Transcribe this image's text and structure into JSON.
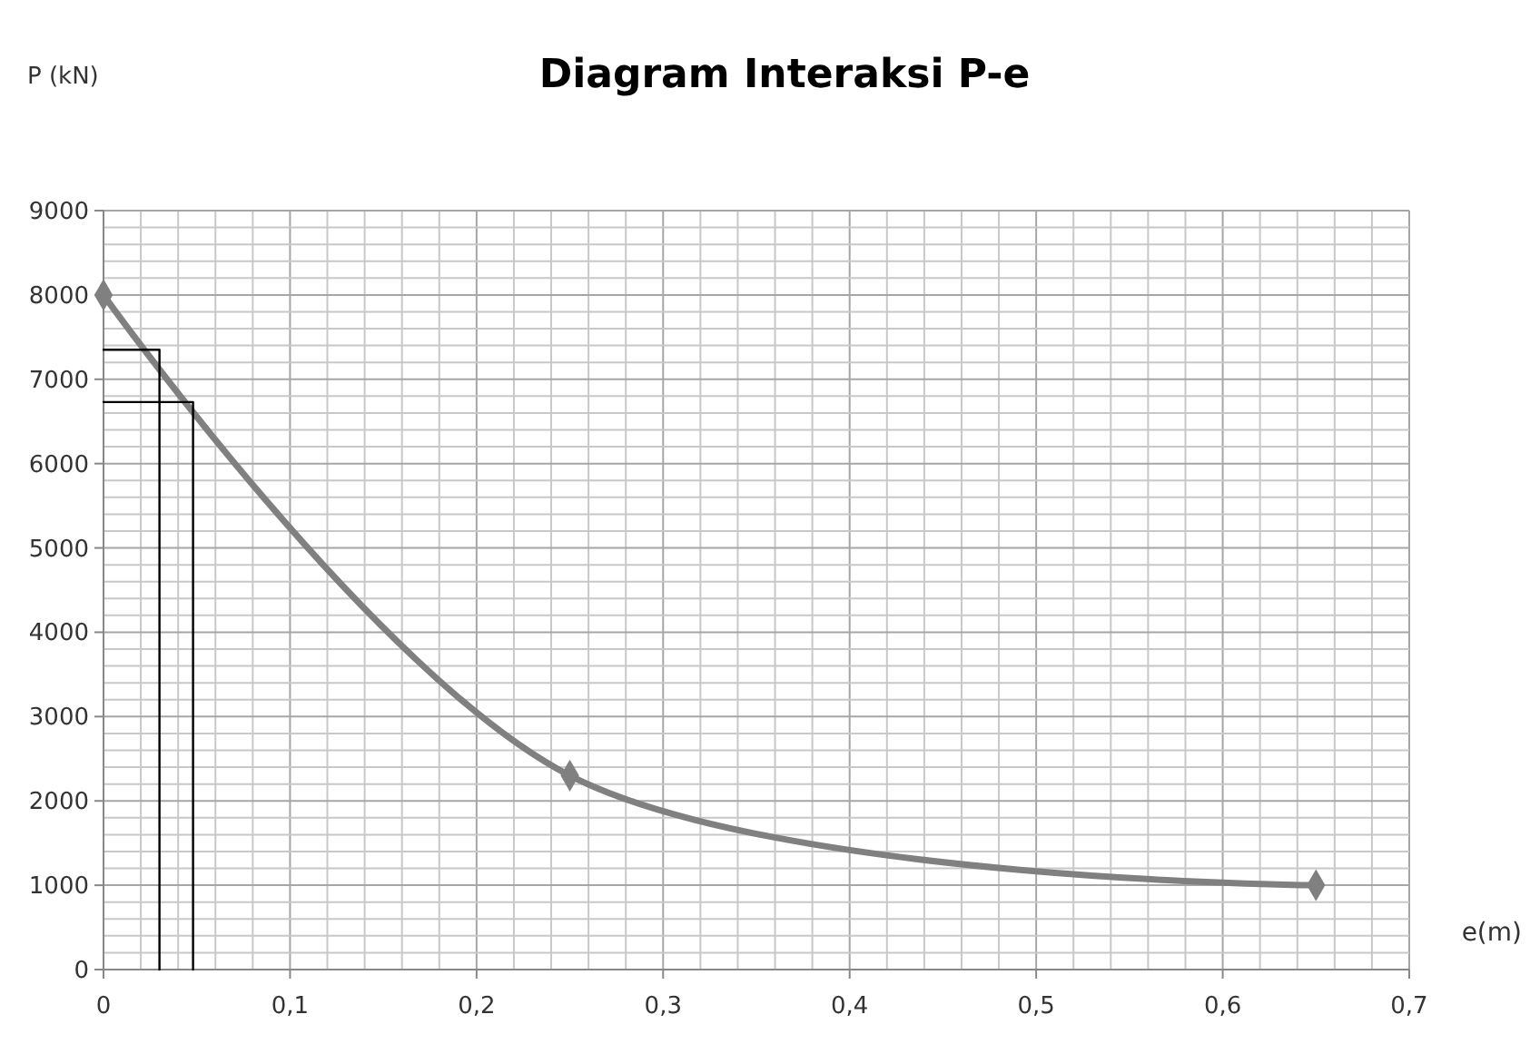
{
  "chart_data": {
    "type": "line",
    "title": "Diagram Interaksi P-e",
    "xlabel": "e(m)",
    "ylabel": "P (kN)",
    "xlim": [
      0,
      0.7
    ],
    "xticks": [
      0,
      {
        "value": 0.02,
        "label": null
      },
      {
        "value": 0.04,
        "label": null
      },
      {
        "value": 0.06,
        "label": null
      },
      {
        "value": 0.08,
        "label": null
      },
      {
        "value": 0.1,
        "label": "0,1"
      },
      {
        "value": 0.12,
        "label": null
      },
      {
        "value": 0.14,
        "label": null
      },
      {
        "value": 0.16,
        "label": null
      },
      {
        "value": 0.18,
        "label": null
      },
      {
        "value": 0.2,
        "label": "0,2"
      },
      {
        "value": 0.22,
        "label": null
      },
      {
        "value": 0.24,
        "label": null
      },
      {
        "value": 0.26,
        "label": null
      },
      {
        "value": 0.28,
        "label": null
      },
      {
        "value": 0.3,
        "label": "0,3"
      },
      {
        "value": 0.32,
        "label": null
      },
      {
        "value": 0.34,
        "label": null
      },
      {
        "value": 0.36,
        "label": null
      },
      {
        "value": 0.38,
        "label": null
      },
      {
        "value": 0.4,
        "label": "0,4"
      },
      {
        "value": 0.42,
        "label": null
      },
      {
        "value": 0.44,
        "label": null
      },
      {
        "value": 0.46,
        "label": null
      },
      {
        "value": 0.48,
        "label": null
      },
      {
        "value": 0.5,
        "label": "0,5"
      },
      {
        "value": 0.52,
        "label": null
      },
      {
        "value": 0.54,
        "label": null
      },
      {
        "value": 0.56,
        "label": null
      },
      {
        "value": 0.58,
        "label": null
      },
      {
        "value": 0.6,
        "label": "0,6"
      },
      {
        "value": 0.62,
        "label": null
      },
      {
        "value": 0.64,
        "label": null
      },
      {
        "value": 0.66,
        "label": null
      },
      {
        "value": 0.68,
        "label": null
      },
      {
        "value": 0.7,
        "label": "0,7"
      }
    ],
    "ylim": [
      0,
      9000
    ],
    "yticks": [
      0,
      {
        "value": 200,
        "label": null
      },
      {
        "value": 400,
        "label": null
      },
      {
        "value": 600,
        "label": null
      },
      {
        "value": 800,
        "label": null
      },
      1000,
      {
        "value": 1200,
        "label": null
      },
      {
        "value": 1400,
        "label": null
      },
      {
        "value": 1600,
        "label": null
      },
      {
        "value": 1800,
        "label": null
      },
      2000,
      {
        "value": 2200,
        "label": null
      },
      {
        "value": 2400,
        "label": null
      },
      {
        "value": 2600,
        "label": null
      },
      {
        "value": 2800,
        "label": null
      },
      3000,
      {
        "value": 3200,
        "label": null
      },
      {
        "value": 3400,
        "label": null
      },
      {
        "value": 3600,
        "label": null
      },
      {
        "value": 3800,
        "label": null
      },
      4000,
      {
        "value": 4200,
        "label": null
      },
      {
        "value": 4400,
        "label": null
      },
      {
        "value": 4600,
        "label": null
      },
      {
        "value": 4800,
        "label": null
      },
      5000,
      {
        "value": 5200,
        "label": null
      },
      {
        "value": 5400,
        "label": null
      },
      {
        "value": 5600,
        "label": null
      },
      {
        "value": 5800,
        "label": null
      },
      6000,
      {
        "value": 6200,
        "label": null
      },
      {
        "value": 6400,
        "label": null
      },
      {
        "value": 6600,
        "label": null
      },
      {
        "value": 6800,
        "label": null
      },
      7000,
      {
        "value": 7200,
        "label": null
      },
      {
        "value": 7400,
        "label": null
      },
      {
        "value": 7600,
        "label": null
      },
      {
        "value": 7800,
        "label": null
      },
      8000,
      {
        "value": 8200,
        "label": null
      },
      {
        "value": 8400,
        "label": null
      },
      {
        "value": 8600,
        "label": null
      },
      {
        "value": 8800,
        "label": null
      },
      9000
    ],
    "grid": true,
    "series": [
      {
        "color": "#808080",
        "marker": "diamond",
        "x": [
          0,
          0.25,
          0.65
        ],
        "values": [
          8000,
          2300,
          1000
        ]
      },
      {
        "color": "#000000",
        "marker": "none",
        "x": [
          0,
          0.03,
          0.03
        ],
        "values": [
          7350,
          7350,
          0
        ]
      },
      {
        "color": "#000000",
        "marker": "none",
        "x": [
          0,
          0.048,
          0.048
        ],
        "values": [
          6730,
          6730,
          0
        ]
      }
    ]
  }
}
